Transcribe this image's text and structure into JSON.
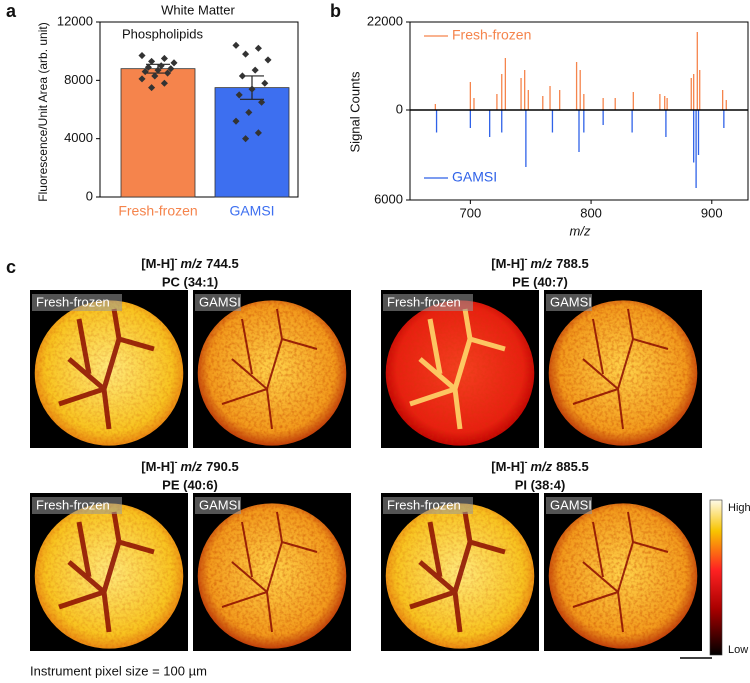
{
  "panels": {
    "a": "a",
    "b": "b",
    "c": "c"
  },
  "chart_data": [
    {
      "type": "bar",
      "title": "White Matter",
      "annotation": "Phospholipids",
      "y_label": "Fluorescence/Unit Area (arb. unit)",
      "categories": [
        "Fresh-frozen",
        "GAMSI"
      ],
      "colors": [
        "#f5844c",
        "#3d6ff0"
      ],
      "values": [
        8800,
        7500
      ],
      "errors": [
        300,
        800
      ],
      "points": [
        [
          9700,
          9500,
          9300,
          9200,
          9000,
          8900,
          8800,
          8700,
          8600,
          8500,
          8300,
          8100,
          7800,
          7500
        ],
        [
          10400,
          10200,
          9800,
          9400,
          8700,
          8300,
          7800,
          7400,
          7000,
          6500,
          5800,
          5200,
          4400,
          4000
        ]
      ],
      "ylim": [
        0,
        12000
      ],
      "yticks": [
        0,
        4000,
        8000,
        12000
      ]
    },
    {
      "type": "mirror",
      "x_label": "m/z",
      "y_label": "Signal Counts",
      "xlim": [
        650,
        930
      ],
      "xticks": [
        700,
        800,
        900
      ],
      "ylim": [
        0,
        22000
      ],
      "yticks": [
        0,
        22000
      ],
      "y2lim": [
        0,
        6000
      ],
      "y2ticks": [
        6000
      ],
      "series": [
        {
          "name": "Fresh-frozen",
          "color": "#f5844c",
          "x": [
            671,
            700,
            703,
            722,
            726,
            729,
            742,
            745,
            748,
            760,
            766,
            774,
            788,
            791,
            794,
            810,
            820,
            835,
            857,
            861,
            863,
            883,
            885,
            888,
            890,
            909,
            912
          ],
          "values": [
            1500,
            7000,
            3000,
            4000,
            9000,
            13000,
            8000,
            10000,
            5000,
            3500,
            6000,
            5000,
            12000,
            10000,
            4000,
            3000,
            3000,
            4500,
            4000,
            3500,
            3000,
            8000,
            9000,
            19500,
            10000,
            5000,
            2500
          ]
        },
        {
          "name": "GAMSI",
          "color": "#2f62e8",
          "axis": "y2",
          "x": [
            672,
            700,
            716,
            726,
            746,
            768,
            790,
            794,
            810,
            834,
            862,
            885,
            887,
            889,
            910
          ],
          "values": [
            1500,
            1200,
            1800,
            1500,
            3800,
            1500,
            2800,
            1500,
            1000,
            1500,
            1800,
            3500,
            5200,
            3000,
            1200
          ]
        }
      ]
    }
  ],
  "images": [
    {
      "ion": "[M-H]",
      "charge": "-",
      "mz": "m/z",
      "mass": "744.5",
      "lipid": "PC (34:1)"
    },
    {
      "ion": "[M-H]",
      "charge": "-",
      "mz": "m/z",
      "mass": "788.5",
      "lipid": "PE (40:7)"
    },
    {
      "ion": "[M-H]",
      "charge": "-",
      "mz": "m/z",
      "mass": "790.5",
      "lipid": "PE (40:6)"
    },
    {
      "ion": "[M-H]",
      "charge": "-",
      "mz": "m/z",
      "mass": "885.5",
      "lipid": "PI (38:4)"
    }
  ],
  "image_labels": [
    "Fresh-frozen",
    "GAMSI"
  ],
  "colorbar": {
    "high": "High",
    "low": "Low"
  },
  "footer": "Instrument pixel size = 100 µm"
}
